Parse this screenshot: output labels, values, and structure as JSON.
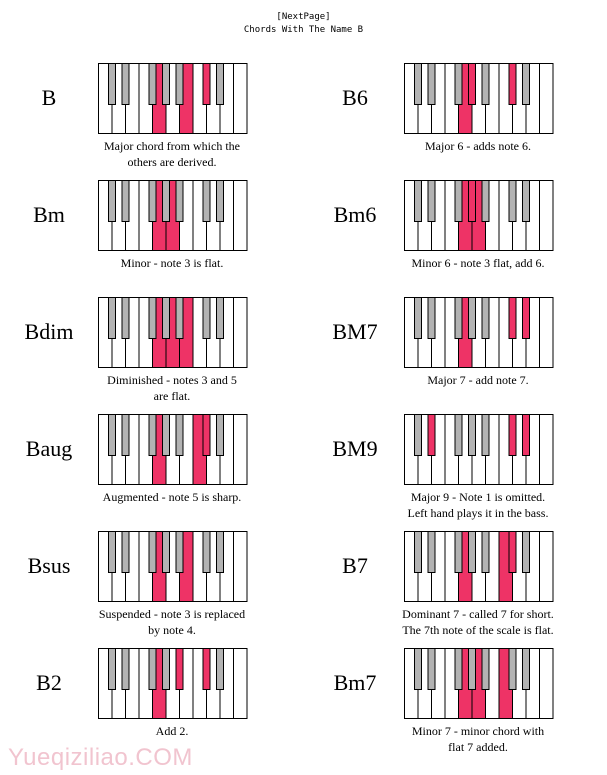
{
  "header": {
    "line1": "[NextPage]",
    "line2": "Chords With The Name B"
  },
  "colors": {
    "highlight": "#ee3366",
    "black_key": "#b3b3b3",
    "white_key": "#ffffff",
    "outline": "#000000"
  },
  "chords": [
    {
      "name": "B",
      "desc": [
        "Major chord from which the",
        "others are derived."
      ],
      "white": [
        4,
        6
      ],
      "black": [
        5
      ]
    },
    {
      "name": "B6",
      "desc": [
        "Major 6 - adds note 6."
      ],
      "white": [
        4
      ],
      "black": [
        3,
        5
      ]
    },
    {
      "name": "Bm",
      "desc": [
        "Minor - note 3 is flat."
      ],
      "white": [
        4,
        5
      ],
      "black": []
    },
    {
      "name": "Bm6",
      "desc": [
        "Minor 6 - note 3 flat, add 6."
      ],
      "white": [
        4,
        5
      ],
      "black": [
        3
      ]
    },
    {
      "name": "Bdim",
      "desc": [
        "Diminished - notes 3 and 5",
        "are flat."
      ],
      "white": [
        4,
        5,
        6
      ],
      "black": []
    },
    {
      "name": "BM7",
      "desc": [
        "Major 7 - add note 7."
      ],
      "white": [
        4
      ],
      "black": [
        5,
        6,
        7
      ]
    },
    {
      "name": "Baug",
      "desc": [
        "Augmented - note 5 is sharp."
      ],
      "white": [
        4,
        7
      ],
      "black": [
        5
      ]
    },
    {
      "name": "BM9",
      "desc": [
        "Major 9 - Note 1 is omitted.",
        "Left hand plays it in the bass."
      ],
      "white": [],
      "black": [
        1,
        5,
        6
      ]
    },
    {
      "name": "Bsus",
      "desc": [
        "Suspended - note 3 is replaced",
        "by note 4."
      ],
      "white": [
        4,
        6
      ],
      "black": []
    },
    {
      "name": "B7",
      "desc": [
        "Dominant 7 - called 7 for short.",
        "The 7th note of the scale is flat."
      ],
      "white": [
        4,
        7
      ],
      "black": [
        5
      ]
    },
    {
      "name": "B2",
      "desc": [
        "Add 2."
      ],
      "white": [
        4
      ],
      "black": [
        4,
        5
      ]
    },
    {
      "name": "Bm7",
      "desc": [
        "Minor 7 - minor chord with",
        "flat 7 added."
      ],
      "white": [
        4,
        5,
        7
      ],
      "black": []
    }
  ],
  "watermark": "Yueqiziliao.COM"
}
